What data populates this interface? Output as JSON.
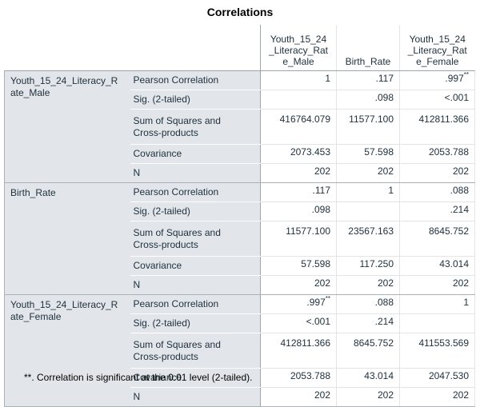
{
  "title": "Correlations",
  "columns": [
    {
      "label": "Youth_15_24\n_Literacy_Rat\ne_Male"
    },
    {
      "label": "Birth_Rate"
    },
    {
      "label": "Youth_15_24\n_Literacy_Rat\ne_Female"
    }
  ],
  "blocks": [
    {
      "variable": "Youth_15_24_Literacy_R\nate_Male",
      "rows": [
        {
          "stat": "Pearson Correlation",
          "values": [
            "1",
            ".117",
            ".997"
          ],
          "marks": [
            "",
            "",
            "**"
          ]
        },
        {
          "stat": "Sig. (2-tailed)",
          "values": [
            "",
            ".098",
            "<.001"
          ],
          "marks": [
            "",
            "",
            ""
          ]
        },
        {
          "stat": "Sum of Squares and\nCross-products",
          "values": [
            "416764.079",
            "11577.100",
            "412811.366"
          ],
          "marks": [
            "",
            "",
            ""
          ]
        },
        {
          "stat": "Covariance",
          "values": [
            "2073.453",
            "57.598",
            "2053.788"
          ],
          "marks": [
            "",
            "",
            ""
          ]
        },
        {
          "stat": "N",
          "values": [
            "202",
            "202",
            "202"
          ],
          "marks": [
            "",
            "",
            ""
          ]
        }
      ]
    },
    {
      "variable": "Birth_Rate",
      "rows": [
        {
          "stat": "Pearson Correlation",
          "values": [
            ".117",
            "1",
            ".088"
          ],
          "marks": [
            "",
            "",
            ""
          ]
        },
        {
          "stat": "Sig. (2-tailed)",
          "values": [
            ".098",
            "",
            ".214"
          ],
          "marks": [
            "",
            "",
            ""
          ]
        },
        {
          "stat": "Sum of Squares and\nCross-products",
          "values": [
            "11577.100",
            "23567.163",
            "8645.752"
          ],
          "marks": [
            "",
            "",
            ""
          ]
        },
        {
          "stat": "Covariance",
          "values": [
            "57.598",
            "117.250",
            "43.014"
          ],
          "marks": [
            "",
            "",
            ""
          ]
        },
        {
          "stat": "N",
          "values": [
            "202",
            "202",
            "202"
          ],
          "marks": [
            "",
            "",
            ""
          ]
        }
      ]
    },
    {
      "variable": "Youth_15_24_Literacy_R\nate_Female",
      "rows": [
        {
          "stat": "Pearson Correlation",
          "values": [
            ".997",
            ".088",
            "1"
          ],
          "marks": [
            "**",
            "",
            ""
          ]
        },
        {
          "stat": "Sig. (2-tailed)",
          "values": [
            "<.001",
            ".214",
            ""
          ],
          "marks": [
            "",
            "",
            ""
          ]
        },
        {
          "stat": "Sum of Squares and\nCross-products",
          "values": [
            "412811.366",
            "8645.752",
            "411553.569"
          ],
          "marks": [
            "",
            "",
            ""
          ]
        },
        {
          "stat": "Covariance",
          "values": [
            "2053.788",
            "43.014",
            "2047.530"
          ],
          "marks": [
            "",
            "",
            ""
          ]
        },
        {
          "stat": "N",
          "values": [
            "202",
            "202",
            "202"
          ],
          "marks": [
            "",
            "",
            ""
          ]
        }
      ]
    }
  ],
  "footnote": "**. Correlation is significant at the 0.01 level (2-tailed)."
}
